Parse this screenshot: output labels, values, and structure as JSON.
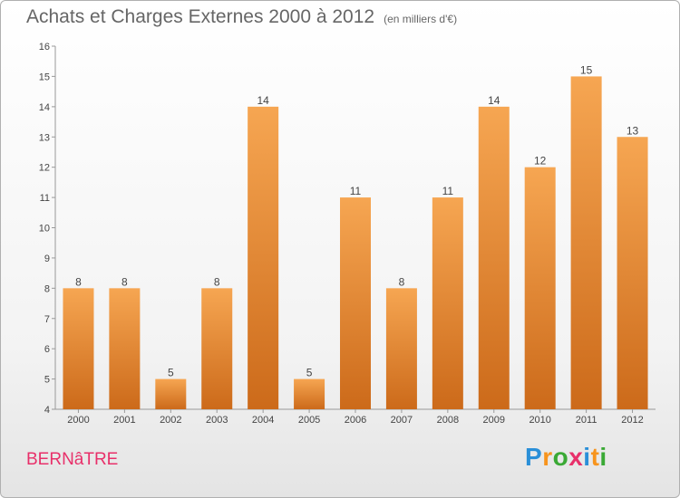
{
  "title": "Achats et Charges Externes 2000 à 2012",
  "subtitle": "(en milliers d'€)",
  "location": "BERNâTRE",
  "brand": {
    "letters": [
      "P",
      "r",
      "o",
      "x",
      "i",
      "t",
      "i"
    ],
    "colors": [
      "#2a8fd8",
      "#f7941d",
      "#3aa935",
      "#e8306a",
      "#2a8fd8",
      "#f7941d",
      "#3aa935"
    ]
  },
  "chart_data": {
    "type": "bar",
    "title": "Achats et Charges Externes 2000 à 2012",
    "subtitle": "(en milliers d'€)",
    "categories": [
      "2000",
      "2001",
      "2002",
      "2003",
      "2004",
      "2005",
      "2006",
      "2007",
      "2008",
      "2009",
      "2010",
      "2011",
      "2012"
    ],
    "values": [
      8,
      8,
      5,
      8,
      14,
      5,
      11,
      8,
      11,
      14,
      12,
      15,
      13
    ],
    "ylim": [
      4,
      16
    ],
    "yticks": [
      4,
      5,
      6,
      7,
      8,
      9,
      10,
      11,
      12,
      13,
      14,
      15,
      16
    ],
    "grid": false,
    "bar_color": "#f29a3f",
    "bar_color_dark": "#cc6a1a"
  }
}
